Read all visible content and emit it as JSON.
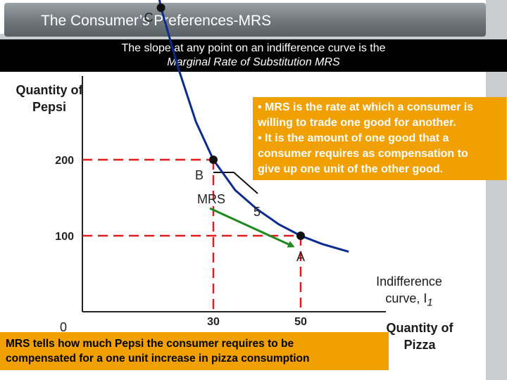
{
  "slide_title": "The Consumer’s Preferences-MRS",
  "banner": {
    "line1": "The slope at any point on an indifference curve is the",
    "line2": "Marginal Rate of Substitution MRS"
  },
  "callout": {
    "bullets": [
      "• MRS is the rate at which a consumer is",
      "   willing to trade one good for another.",
      "• It is the amount of one good that a",
      "   consumer requires as compensation to",
      "   give up one unit of the other good."
    ]
  },
  "bottom_note": {
    "line1": "MRS tells how much Pepsi the consumer requires to be",
    "line2": "compensated for a one unit increase in pizza consumption"
  },
  "colors": {
    "curve": "#0d2b8f",
    "guide": "#e21b1b",
    "arrow": "#1f8a1f",
    "callout_bg": "#f0a000"
  },
  "chart_data": {
    "type": "line",
    "xlabel": "Quantity of Pizza",
    "ylabel": "Quantity of Pepsi",
    "curve_label": "Indifference curve, I",
    "curve_label_sub": "1",
    "origin_label": "0",
    "x_ticks": [
      "30",
      "50"
    ],
    "y_ticks": [
      "200",
      "100"
    ],
    "points": [
      {
        "label": "C",
        "x": 18,
        "y": 400
      },
      {
        "label": "B",
        "x": 30,
        "y": 200
      },
      {
        "label": "A",
        "x": 50,
        "y": 100
      }
    ],
    "curve": [
      [
        11,
        600
      ],
      [
        14,
        520
      ],
      [
        18,
        400
      ],
      [
        22,
        320
      ],
      [
        26,
        250
      ],
      [
        30,
        200
      ],
      [
        35,
        160
      ],
      [
        40,
        135
      ],
      [
        45,
        115
      ],
      [
        50,
        100
      ],
      [
        55,
        89
      ],
      [
        61,
        79
      ]
    ],
    "annotations": {
      "mrs_label": "MRS",
      "slope_value": "5"
    }
  }
}
